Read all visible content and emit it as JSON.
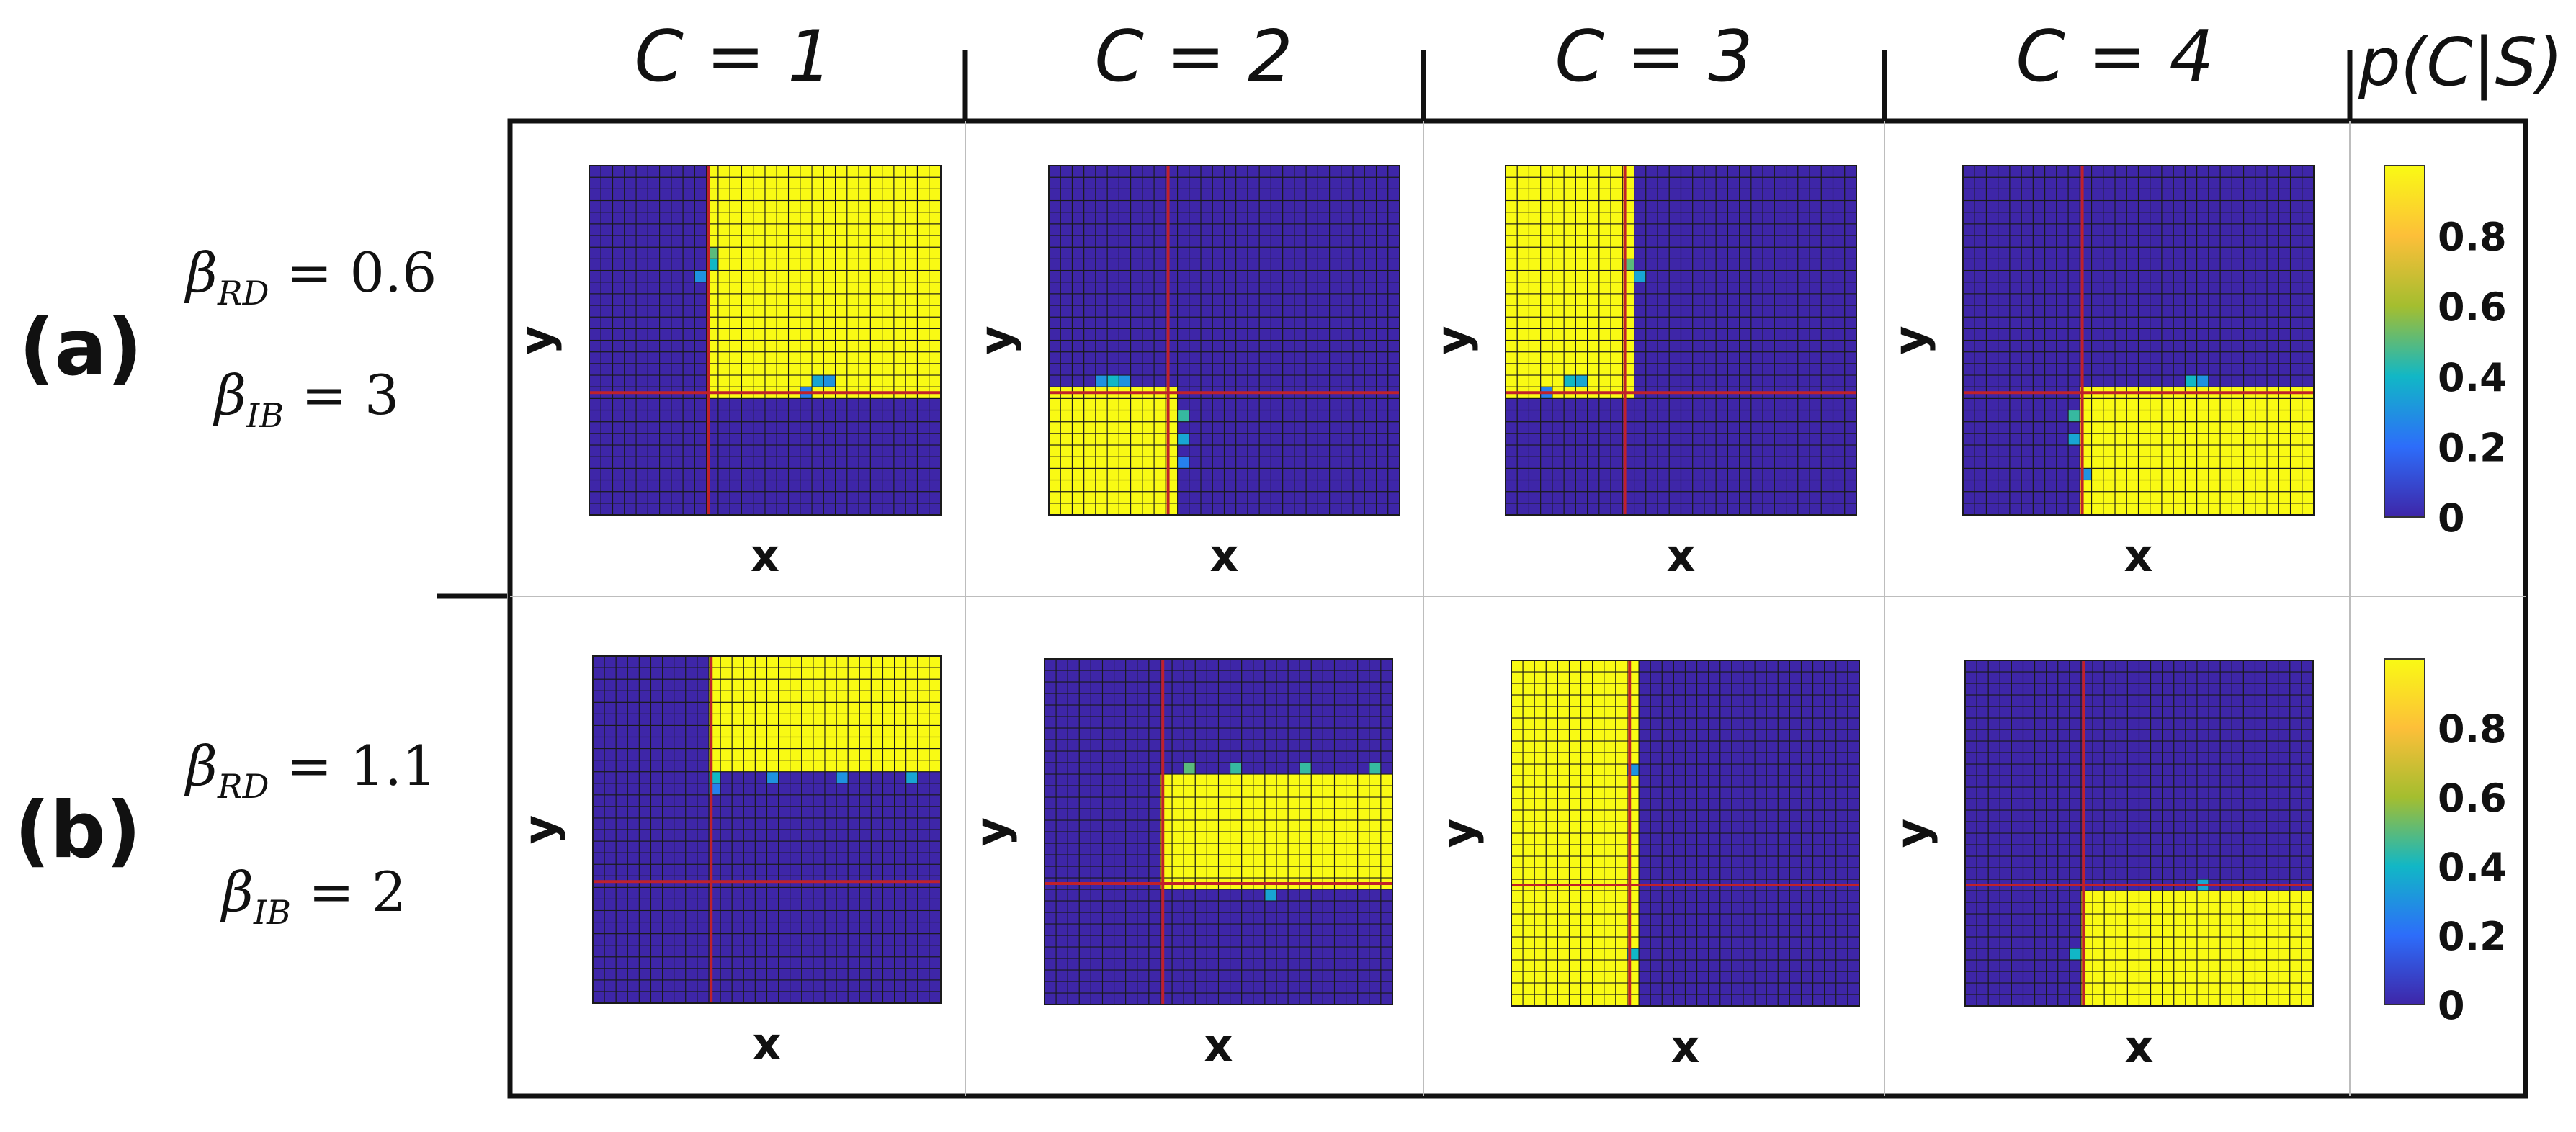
{
  "figure": {
    "column_headers": [
      "C = 1",
      "C = 2",
      "C = 3",
      "C = 4"
    ],
    "colorbar_header": "p(C|S)"
  },
  "chart_data": {
    "type": "heatmap",
    "grid_size": 30,
    "colormap": [
      "#3e26a8",
      "#2d6dfa",
      "#11b7c6",
      "#a4be2f",
      "#fdbf39",
      "#f9fa14"
    ],
    "divider_color": "#c0212a",
    "xlabel": "x",
    "ylabel": "y",
    "colorbar": {
      "ticks": [
        "0",
        "0.2",
        "0.4",
        "0.6",
        "0.8"
      ],
      "range": [
        0,
        1
      ]
    },
    "rows": [
      {
        "label": "(a)",
        "param1_name": "β_RD",
        "param1_value": "0.6",
        "param2_name": "β_IB",
        "param2_value": "3",
        "panels": [
          {
            "cluster": "C = 1",
            "region_x": [
              0.35,
              1
            ],
            "region_y": [
              0.35,
              1
            ],
            "boundary_points": [
              {
                "x": 0.34,
                "y": 0.75,
                "p": 0.5
              },
              {
                "x": 0.34,
                "y": 0.72,
                "p": 0.4
              },
              {
                "x": 0.33,
                "y": 0.69,
                "p": 0.3
              },
              {
                "x": 0.66,
                "y": 0.37,
                "p": 0.35
              },
              {
                "x": 0.69,
                "y": 0.38,
                "p": 0.3
              },
              {
                "x": 0.63,
                "y": 0.36,
                "p": 0.25
              }
            ]
          },
          {
            "cluster": "C = 2",
            "region_x": [
              0,
              0.35
            ],
            "region_y": [
              0,
              0.35
            ],
            "boundary_points": [
              {
                "x": 0.37,
                "y": 0.28,
                "p": 0.45
              },
              {
                "x": 0.38,
                "y": 0.22,
                "p": 0.35
              },
              {
                "x": 0.38,
                "y": 0.16,
                "p": 0.25
              },
              {
                "x": 0.18,
                "y": 0.38,
                "p": 0.4
              },
              {
                "x": 0.15,
                "y": 0.37,
                "p": 0.3
              },
              {
                "x": 0.22,
                "y": 0.37,
                "p": 0.3
              }
            ]
          },
          {
            "cluster": "C = 3",
            "region_x": [
              0,
              0.35
            ],
            "region_y": [
              0.35,
              1
            ],
            "boundary_points": [
              {
                "x": 0.36,
                "y": 0.72,
                "p": 0.5
              },
              {
                "x": 0.37,
                "y": 0.69,
                "p": 0.35
              },
              {
                "x": 0.18,
                "y": 0.37,
                "p": 0.4
              },
              {
                "x": 0.22,
                "y": 0.38,
                "p": 0.35
              },
              {
                "x": 0.12,
                "y": 0.36,
                "p": 0.25
              }
            ]
          },
          {
            "cluster": "C = 4",
            "region_x": [
              0.35,
              1
            ],
            "region_y": [
              0,
              0.35
            ],
            "boundary_points": [
              {
                "x": 0.33,
                "y": 0.28,
                "p": 0.45
              },
              {
                "x": 0.33,
                "y": 0.22,
                "p": 0.35
              },
              {
                "x": 0.34,
                "y": 0.12,
                "p": 0.3
              },
              {
                "x": 0.66,
                "y": 0.37,
                "p": 0.4
              },
              {
                "x": 0.69,
                "y": 0.38,
                "p": 0.3
              }
            ]
          }
        ]
      },
      {
        "label": "(b)",
        "param1_name": "β_RD",
        "param1_value": "1.1",
        "param2_name": "β_IB",
        "param2_value": "2",
        "panels": [
          {
            "cluster": "C = 1",
            "region_x": [
              0.35,
              1
            ],
            "region_y": [
              0.66,
              1
            ],
            "boundary_points": [
              {
                "x": 0.36,
                "y": 0.64,
                "p": 0.4
              },
              {
                "x": 0.5,
                "y": 0.64,
                "p": 0.3
              },
              {
                "x": 0.7,
                "y": 0.64,
                "p": 0.3
              },
              {
                "x": 0.9,
                "y": 0.64,
                "p": 0.35
              },
              {
                "x": 0.36,
                "y": 0.61,
                "p": 0.25
              }
            ]
          },
          {
            "cluster": "C = 2",
            "region_x": [
              0.35,
              1
            ],
            "region_y": [
              0.35,
              0.66
            ],
            "boundary_points": [
              {
                "x": 0.4,
                "y": 0.67,
                "p": 0.5
              },
              {
                "x": 0.55,
                "y": 0.67,
                "p": 0.45
              },
              {
                "x": 0.75,
                "y": 0.67,
                "p": 0.45
              },
              {
                "x": 0.95,
                "y": 0.67,
                "p": 0.45
              },
              {
                "x": 0.66,
                "y": 0.33,
                "p": 0.35
              }
            ]
          },
          {
            "cluster": "C = 3",
            "region_x": [
              0,
              0.35
            ],
            "region_y": [
              0,
              1
            ],
            "boundary_points": [
              {
                "x": 0.36,
                "y": 0.68,
                "p": 0.3
              },
              {
                "x": 0.36,
                "y": 0.15,
                "p": 0.4
              }
            ]
          },
          {
            "cluster": "C = 4",
            "region_x": [
              0.35,
              1
            ],
            "region_y": [
              0,
              0.33
            ],
            "boundary_points": [
              {
                "x": 0.33,
                "y": 0.15,
                "p": 0.4
              },
              {
                "x": 0.69,
                "y": 0.35,
                "p": 0.35
              }
            ]
          }
        ]
      }
    ]
  }
}
